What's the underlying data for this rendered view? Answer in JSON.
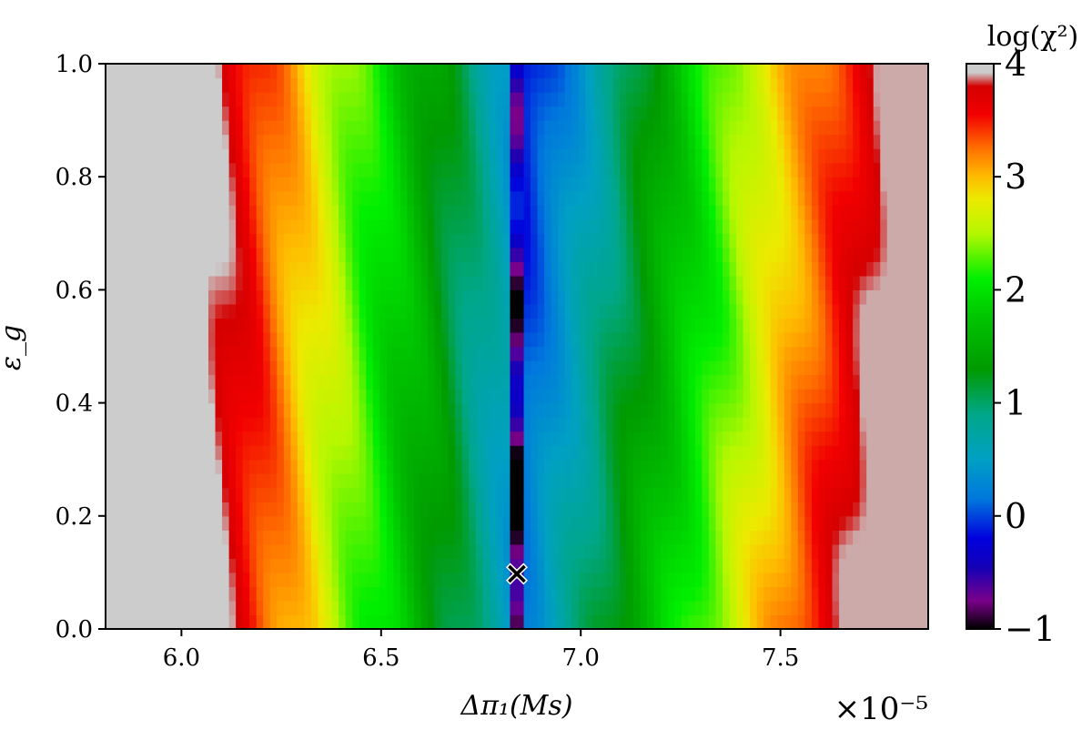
{
  "chart_data": {
    "type": "heatmap",
    "title": "",
    "xlabel": "Δπ₁(Ms)",
    "ylabel": "ε_g",
    "x_offset_label": "×10⁻⁵",
    "x_scale_exponent": -5,
    "xlim": [
      5.81,
      7.87
    ],
    "ylim": [
      0.0,
      1.0
    ],
    "x_ticks": [
      6.0,
      6.5,
      7.0,
      7.5
    ],
    "x_tick_labels": [
      "6.0",
      "6.5",
      "7.0",
      "7.5"
    ],
    "y_ticks": [
      0.0,
      0.2,
      0.4,
      0.6,
      0.8,
      1.0
    ],
    "y_tick_labels": [
      "0.0",
      "0.2",
      "0.4",
      "0.6",
      "0.8",
      "1.0"
    ],
    "grid": false,
    "colorbar": {
      "title": "log(χ²)",
      "range": [
        -1,
        4
      ],
      "ticks": [
        -1,
        0,
        1,
        2,
        3,
        4
      ],
      "tick_labels": [
        "−1",
        "0",
        "1",
        "2",
        "3",
        "4"
      ],
      "colormap": "nipy_spectral",
      "stops": [
        {
          "v": -1.0,
          "color": "#000000"
        },
        {
          "v": -0.75,
          "color": "#7a008a"
        },
        {
          "v": -0.45,
          "color": "#1400b8"
        },
        {
          "v": -0.2,
          "color": "#0000dd"
        },
        {
          "v": 0.15,
          "color": "#0077dd"
        },
        {
          "v": 0.5,
          "color": "#00a0c4"
        },
        {
          "v": 0.9,
          "color": "#00a788"
        },
        {
          "v": 1.3,
          "color": "#009a00"
        },
        {
          "v": 1.75,
          "color": "#00c400"
        },
        {
          "v": 2.1,
          "color": "#00ef00"
        },
        {
          "v": 2.5,
          "color": "#b5f700"
        },
        {
          "v": 2.8,
          "color": "#ecea00"
        },
        {
          "v": 3.0,
          "color": "#ffbb00"
        },
        {
          "v": 3.25,
          "color": "#ff7000"
        },
        {
          "v": 3.55,
          "color": "#f20000"
        },
        {
          "v": 3.8,
          "color": "#d40000"
        },
        {
          "v": 3.92,
          "color": "#cccccc"
        },
        {
          "v": 4.0,
          "color": "#cccccc"
        }
      ]
    },
    "model": {
      "x_min_location": 6.84,
      "valley_depth_log": -1.0,
      "left_slope_per_unit_x": 4.7,
      "right_slope_per_unit_x": 4.5,
      "right_saturation": 3.9,
      "left_saturation": 4.0
    },
    "best_fit_marker": {
      "x": 6.84,
      "y": 0.1,
      "symbol": "×",
      "colors": [
        "#ffffff",
        "#008000"
      ]
    }
  }
}
